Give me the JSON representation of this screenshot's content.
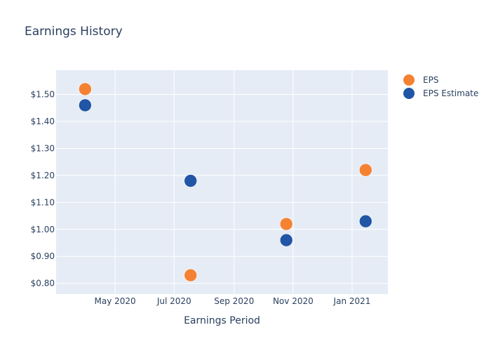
{
  "chart_data": {
    "type": "scatter",
    "title": "Earnings History",
    "xlabel": "Earnings Period",
    "ylabel": "",
    "x_axis_type": "date",
    "xlim": [
      "2020-03-01",
      "2021-02-07"
    ],
    "ylim": [
      0.76,
      1.59
    ],
    "x_ticks": [
      {
        "date": "2020-05-01",
        "label": "May 2020"
      },
      {
        "date": "2020-07-01",
        "label": "Jul 2020"
      },
      {
        "date": "2020-09-01",
        "label": "Sep 2020"
      },
      {
        "date": "2020-11-01",
        "label": "Nov 2020"
      },
      {
        "date": "2021-01-01",
        "label": "Jan 2021"
      }
    ],
    "y_ticks": [
      {
        "value": 0.8,
        "label": "$0.80"
      },
      {
        "value": 0.9,
        "label": "$0.90"
      },
      {
        "value": 1.0,
        "label": "$1.00"
      },
      {
        "value": 1.1,
        "label": "$1.10"
      },
      {
        "value": 1.2,
        "label": "$1.20"
      },
      {
        "value": 1.3,
        "label": "$1.30"
      },
      {
        "value": 1.4,
        "label": "$1.40"
      },
      {
        "value": 1.5,
        "label": "$1.50"
      }
    ],
    "grid": true,
    "legend_position": "right",
    "series": [
      {
        "name": "EPS",
        "color": "#f58233",
        "points": [
          {
            "x": "2020-03-31",
            "y": 1.52
          },
          {
            "x": "2020-07-18",
            "y": 0.83
          },
          {
            "x": "2020-10-25",
            "y": 1.02
          },
          {
            "x": "2021-01-15",
            "y": 1.22
          }
        ]
      },
      {
        "name": "EPS Estimate",
        "color": "#2155a5",
        "points": [
          {
            "x": "2020-03-31",
            "y": 1.46
          },
          {
            "x": "2020-07-18",
            "y": 1.18
          },
          {
            "x": "2020-10-25",
            "y": 0.96
          },
          {
            "x": "2021-01-15",
            "y": 1.03
          }
        ]
      }
    ]
  },
  "theme": {
    "plot_background": "#e5ecf6",
    "grid_color": "#ffffff",
    "text_color": "#2a3f5f"
  }
}
